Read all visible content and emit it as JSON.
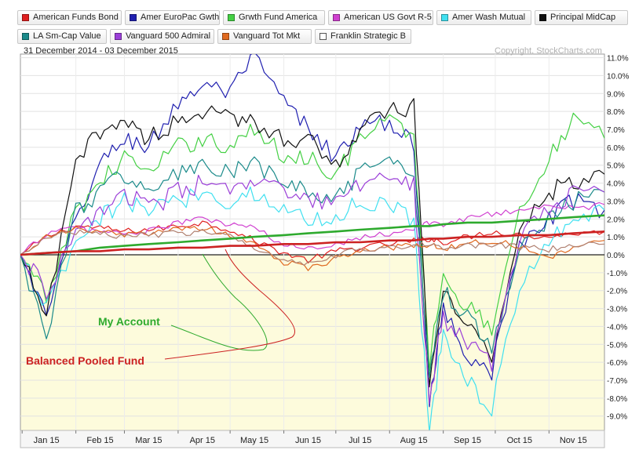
{
  "header": {
    "date_range": "31 December 2014 - 03 December 2015",
    "copyright": "Copyright, StockCharts.com"
  },
  "legend": [
    {
      "label": "American Funds Bond",
      "color": "#e02020",
      "hollow": false
    },
    {
      "label": "Amer EuroPac Gwth",
      "color": "#2020b0",
      "hollow": false
    },
    {
      "label": "Grwth Fund America",
      "color": "#44d044",
      "hollow": false
    },
    {
      "label": "American US Govt R-5",
      "color": "#d040d0",
      "hollow": false
    },
    {
      "label": "Amer Wash Mutual",
      "color": "#40e0f0",
      "hollow": false
    },
    {
      "label": "Principal MidCap",
      "color": "#111111",
      "hollow": false
    },
    {
      "label": "LA Sm-Cap Value",
      "color": "#1a8a8a",
      "hollow": false
    },
    {
      "label": "Vanguard 500 Admiral",
      "color": "#9b3fd8",
      "hollow": false
    },
    {
      "label": "Vanguard Tot Mkt",
      "color": "#e06a20",
      "hollow": false
    },
    {
      "label": "Franklin Strategic B",
      "color": "#ffffff",
      "hollow": true
    }
  ],
  "annotations": [
    {
      "label": "My Account",
      "color": "#2eaa2e"
    },
    {
      "label": "Balanced Pooled Fund",
      "color": "#cc2222"
    }
  ],
  "chart_data": {
    "type": "line",
    "x_ticks": [
      "Jan 15",
      "Feb 15",
      "Mar 15",
      "Apr 15",
      "May 15",
      "Jun 15",
      "Jul 15",
      "Aug 15",
      "Sep 15",
      "Oct 15",
      "Nov 15"
    ],
    "y_ticks": [
      "11.0%",
      "10.0%",
      "9.0%",
      "8.0%",
      "7.0%",
      "6.0%",
      "5.0%",
      "4.0%",
      "3.0%",
      "2.0%",
      "1.0%",
      "0.0%",
      "-1.0%",
      "-2.0%",
      "-3.0%",
      "-4.0%",
      "-5.0%",
      "-6.0%",
      "-7.0%",
      "-8.0%",
      "-9.0%"
    ],
    "ylim": [
      -9.8,
      11.2
    ],
    "y_scale": "percent change",
    "grid": true,
    "x": [
      "2014-12-31",
      "2015-01-15",
      "2015-02-01",
      "2015-02-15",
      "2015-03-01",
      "2015-03-15",
      "2015-04-01",
      "2015-04-15",
      "2015-05-01",
      "2015-05-15",
      "2015-06-01",
      "2015-06-15",
      "2015-07-01",
      "2015-07-15",
      "2015-08-01",
      "2015-08-15",
      "2015-08-24",
      "2015-09-01",
      "2015-09-15",
      "2015-09-29",
      "2015-10-15",
      "2015-11-01",
      "2015-11-15",
      "2015-12-03"
    ],
    "series": [
      {
        "name": "American Funds Bond",
        "color": "#e02020",
        "values": [
          0.0,
          1.0,
          1.6,
          1.5,
          1.3,
          1.4,
          1.6,
          1.8,
          1.4,
          0.8,
          0.1,
          -0.3,
          0.2,
          0.4,
          0.6,
          0.8,
          0.9,
          0.7,
          1.0,
          1.3,
          1.1,
          1.0,
          1.2,
          1.3
        ]
      },
      {
        "name": "Amer EuroPac Gwth",
        "color": "#2020b0",
        "values": [
          0.0,
          -3.5,
          2.0,
          5.0,
          6.5,
          6.0,
          8.5,
          9.5,
          9.0,
          11.0,
          8.5,
          7.0,
          5.5,
          7.0,
          7.5,
          6.0,
          -8.0,
          -3.0,
          -5.5,
          -6.5,
          0.5,
          2.0,
          3.0,
          2.5
        ]
      },
      {
        "name": "Grwth Fund America",
        "color": "#44d044",
        "values": [
          0.0,
          -2.5,
          2.5,
          4.0,
          5.5,
          4.5,
          6.0,
          6.5,
          6.0,
          7.0,
          5.5,
          5.5,
          4.5,
          6.5,
          7.5,
          6.5,
          -6.0,
          -1.0,
          -3.0,
          -4.0,
          2.5,
          5.5,
          7.5,
          6.5
        ]
      },
      {
        "name": "American US Govt R-5",
        "color": "#d040d0",
        "values": [
          0.0,
          1.2,
          1.5,
          1.3,
          1.2,
          1.3,
          1.8,
          2.0,
          1.7,
          1.5,
          0.5,
          0.4,
          0.6,
          1.0,
          1.2,
          1.5,
          1.8,
          1.7,
          2.0,
          2.3,
          2.5,
          2.7,
          2.6,
          2.8
        ]
      },
      {
        "name": "Amer Wash Mutual",
        "color": "#40e0f0",
        "values": [
          0.0,
          -3.0,
          0.5,
          2.0,
          3.0,
          2.5,
          3.0,
          3.5,
          3.0,
          3.5,
          2.5,
          2.0,
          2.0,
          3.0,
          2.8,
          2.0,
          -9.5,
          -4.5,
          -7.0,
          -8.5,
          -2.0,
          1.0,
          2.0,
          2.5
        ]
      },
      {
        "name": "Principal MidCap",
        "color": "#111111",
        "values": [
          0.0,
          -3.5,
          5.0,
          7.0,
          7.5,
          6.5,
          7.5,
          8.0,
          7.5,
          7.5,
          6.5,
          6.5,
          5.0,
          7.0,
          8.0,
          8.2,
          -7.0,
          -2.0,
          -4.0,
          -5.5,
          1.5,
          3.5,
          4.0,
          4.5
        ]
      },
      {
        "name": "LA Sm-Cap Value",
        "color": "#1a8a8a",
        "values": [
          0.0,
          -4.5,
          2.5,
          3.5,
          4.5,
          3.5,
          4.5,
          5.0,
          4.5,
          5.0,
          4.0,
          3.5,
          3.0,
          4.5,
          5.0,
          4.5,
          -6.5,
          -2.0,
          -3.5,
          -5.0,
          0.5,
          2.0,
          3.0,
          3.5
        ]
      },
      {
        "name": "Vanguard 500 Admiral",
        "color": "#9b3fd8",
        "values": [
          0.0,
          -2.0,
          1.0,
          2.5,
          3.5,
          2.5,
          3.5,
          4.0,
          3.5,
          4.0,
          3.5,
          3.0,
          2.8,
          4.0,
          4.5,
          4.0,
          -8.0,
          -3.5,
          -5.0,
          -6.0,
          1.0,
          2.5,
          3.5,
          3.5
        ]
      },
      {
        "name": "Vanguard Tot Mkt",
        "color": "#e06a20",
        "values": [
          0.0,
          1.0,
          1.4,
          1.3,
          1.1,
          1.2,
          1.4,
          1.5,
          1.1,
          0.6,
          -0.4,
          -0.8,
          -0.2,
          0.2,
          0.4,
          0.5,
          0.6,
          0.3,
          0.6,
          0.8,
          0.5,
          -0.2,
          0.4,
          0.8
        ]
      },
      {
        "name": "Franklin Strategic B",
        "color": "#b08070",
        "values": [
          0.0,
          0.9,
          1.3,
          1.2,
          1.0,
          1.1,
          1.2,
          1.3,
          1.0,
          0.4,
          -0.2,
          -0.5,
          0.0,
          0.3,
          0.4,
          0.5,
          0.6,
          0.4,
          0.5,
          0.6,
          0.4,
          0.3,
          0.5,
          0.6
        ]
      },
      {
        "name": "My Account",
        "color": "#2eaa2e",
        "values": [
          0.0,
          0.1,
          0.2,
          0.4,
          0.5,
          0.6,
          0.7,
          0.8,
          0.9,
          1.0,
          1.1,
          1.2,
          1.3,
          1.4,
          1.5,
          1.6,
          1.6,
          1.7,
          1.8,
          1.8,
          1.9,
          2.0,
          2.1,
          2.2
        ]
      },
      {
        "name": "Balanced Pooled Fund",
        "color": "#cc2222",
        "values": [
          0.0,
          0.1,
          0.2,
          0.2,
          0.3,
          0.3,
          0.4,
          0.4,
          0.5,
          0.5,
          0.6,
          0.6,
          0.7,
          0.7,
          0.8,
          0.8,
          0.9,
          0.9,
          1.0,
          1.0,
          1.1,
          1.1,
          1.2,
          1.3
        ]
      }
    ]
  }
}
